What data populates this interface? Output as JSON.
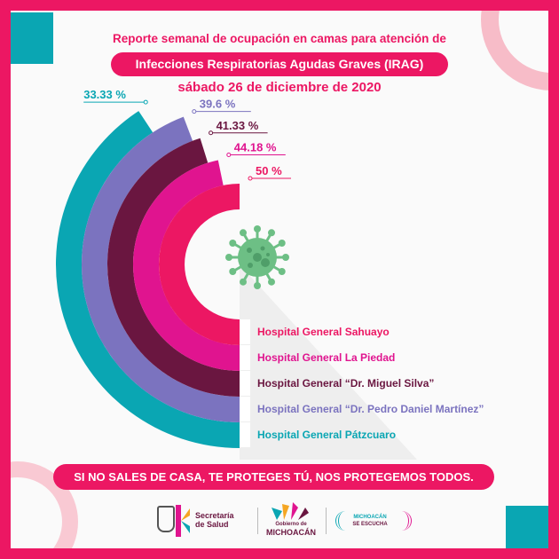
{
  "header": {
    "line1": "Reporte semanal de ocupación en camas para atención de",
    "highlight": "Infecciones Respiratorias Agudas Graves (IRAG)",
    "date": "sábado 26 de diciembre de 2020"
  },
  "chart_data": {
    "type": "radial-bar",
    "title": "Reporte semanal de ocupación en camas para atención de Infecciones Respiratorias Agudas Graves (IRAG)",
    "categories": [
      "Hospital General Sahuayo",
      "Hospital General La Piedad",
      "Hospital General “Dr. Miguel Silva”",
      "Hospital General “Dr. Pedro Daniel Martínez”",
      "Hospital General Pátzcuaro"
    ],
    "values": [
      50,
      44.18,
      41.33,
      39.6,
      33.33
    ],
    "value_labels": [
      "50 %",
      "44.18 %",
      "41.33 %",
      "39.6 %",
      "33.33 %"
    ],
    "colors": [
      "#ec1763",
      "#e0148f",
      "#6a1640",
      "#7b73bf",
      "#0aa6b3"
    ],
    "unit": "%"
  },
  "center_icon": "virus-icon",
  "slogan": "SI NO SALES DE CASA, TE PROTEGES TÚ, NOS PROTEGEMOS TODOS.",
  "footer": {
    "salud_line1": "Secretaría",
    "salud_line2": "de Salud",
    "gobierno_line1": "Gobierno de",
    "gobierno_line2": "MICHOACÁN",
    "escucha_line1": "MICHOACÁN",
    "escucha_line2": "SE ESCUCHA"
  }
}
